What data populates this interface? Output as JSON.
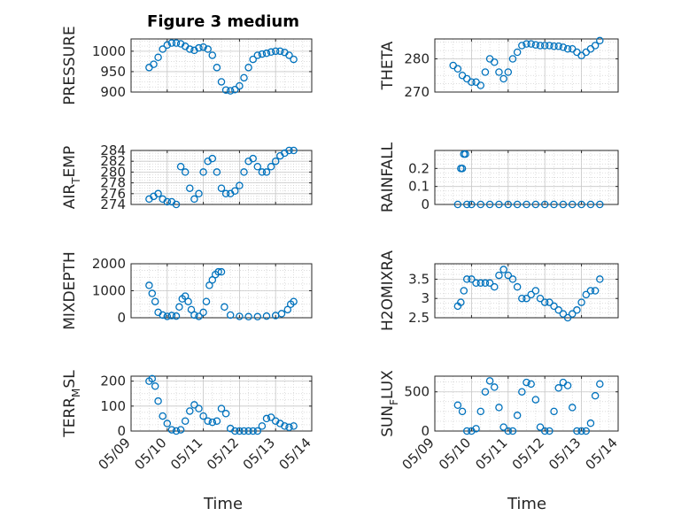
{
  "figure": {
    "title": "Figure 3 medium",
    "marker_color": "#0072BD",
    "grid": "on (major + minor dotted)"
  },
  "chart_data": [
    {
      "type": "scatter",
      "title": "Figure 3 medium",
      "ylabel": "PRESSURE",
      "xlim": [
        "05/09",
        "05/14"
      ],
      "ylim": [
        900,
        1030
      ],
      "yticks": [
        900,
        950,
        1000
      ],
      "x": [
        "05/09 12:00",
        "05/09 15:00",
        "05/09 18:00",
        "05/09 21:00",
        "05/10 00:00",
        "05/10 03:00",
        "05/10 06:00",
        "05/10 09:00",
        "05/10 12:00",
        "05/10 15:00",
        "05/10 18:00",
        "05/10 21:00",
        "05/11 00:00",
        "05/11 03:00",
        "05/11 06:00",
        "05/11 09:00",
        "05/11 12:00",
        "05/11 15:00",
        "05/11 18:00",
        "05/11 21:00",
        "05/12 00:00",
        "05/12 03:00",
        "05/12 06:00",
        "05/12 09:00",
        "05/12 12:00",
        "05/12 15:00",
        "05/12 18:00",
        "05/12 21:00",
        "05/13 00:00",
        "05/13 03:00",
        "05/13 06:00",
        "05/13 09:00",
        "05/13 12:00"
      ],
      "y": [
        960,
        968,
        985,
        1005,
        1015,
        1020,
        1020,
        1018,
        1012,
        1005,
        1002,
        1008,
        1010,
        1005,
        990,
        960,
        925,
        905,
        903,
        906,
        915,
        935,
        960,
        980,
        990,
        993,
        995,
        998,
        1000,
        1000,
        997,
        990,
        980
      ]
    },
    {
      "type": "scatter",
      "ylabel": "THETA",
      "xlim": [
        "05/09",
        "05/14"
      ],
      "ylim": [
        270,
        286
      ],
      "yticks": [
        270,
        280
      ],
      "x": [
        "05/09 12:00",
        "05/09 15:00",
        "05/09 18:00",
        "05/09 21:00",
        "05/10 00:00",
        "05/10 03:00",
        "05/10 06:00",
        "05/10 09:00",
        "05/10 12:00",
        "05/10 15:00",
        "05/10 18:00",
        "05/10 21:00",
        "05/11 00:00",
        "05/11 03:00",
        "05/11 06:00",
        "05/11 09:00",
        "05/11 12:00",
        "05/11 15:00",
        "05/11 18:00",
        "05/11 21:00",
        "05/12 00:00",
        "05/12 03:00",
        "05/12 06:00",
        "05/12 09:00",
        "05/12 12:00",
        "05/12 15:00",
        "05/12 18:00",
        "05/12 21:00",
        "05/13 00:00",
        "05/13 03:00",
        "05/13 06:00",
        "05/13 09:00",
        "05/13 12:00"
      ],
      "y": [
        278,
        277,
        275,
        274,
        273,
        273,
        272,
        276,
        280,
        279,
        276,
        274,
        276,
        280,
        282,
        284,
        284.5,
        284.5,
        284.2,
        284,
        284,
        284,
        283.8,
        283.8,
        283.5,
        283,
        283,
        282,
        281,
        282,
        283,
        284,
        285.5
      ]
    },
    {
      "type": "scatter",
      "ylabel": "AIR_TEMP",
      "xlim": [
        "05/09",
        "05/14"
      ],
      "ylim": [
        274,
        284
      ],
      "yticks": [
        274,
        276,
        278,
        280,
        282,
        284
      ],
      "x": [
        "05/09 12:00",
        "05/09 15:00",
        "05/09 18:00",
        "05/09 21:00",
        "05/10 00:00",
        "05/10 03:00",
        "05/10 06:00",
        "05/10 09:00",
        "05/10 12:00",
        "05/10 15:00",
        "05/10 18:00",
        "05/10 21:00",
        "05/11 00:00",
        "05/11 03:00",
        "05/11 06:00",
        "05/11 09:00",
        "05/11 12:00",
        "05/11 15:00",
        "05/11 18:00",
        "05/11 21:00",
        "05/12 00:00",
        "05/12 03:00",
        "05/12 06:00",
        "05/12 09:00",
        "05/12 12:00",
        "05/12 15:00",
        "05/12 18:00",
        "05/12 21:00",
        "05/13 00:00",
        "05/13 03:00",
        "05/13 06:00",
        "05/13 09:00",
        "05/13 12:00"
      ],
      "y": [
        275,
        275.5,
        276,
        275,
        274.5,
        274.5,
        274,
        281,
        280,
        277,
        275,
        276,
        280,
        282,
        282.5,
        280,
        277,
        276,
        276,
        276.5,
        277.5,
        280,
        282,
        282.5,
        281,
        280,
        280,
        281,
        282,
        283,
        283.5,
        284,
        284
      ]
    },
    {
      "type": "scatter",
      "ylabel": "RAINFALL",
      "xlim": [
        "05/09",
        "05/14"
      ],
      "ylim": [
        0,
        0.3
      ],
      "yticks": [
        0,
        0.1,
        0.2
      ],
      "x": [
        "05/09 15:00",
        "05/09 17:00",
        "05/09 18:00",
        "05/09 19:00",
        "05/09 20:00",
        "05/09 21:00",
        "05/10 00:00",
        "05/10 06:00",
        "05/10 12:00",
        "05/10 18:00",
        "05/11 00:00",
        "05/11 06:00",
        "05/11 12:00",
        "05/11 18:00",
        "05/12 00:00",
        "05/12 06:00",
        "05/12 12:00",
        "05/12 18:00",
        "05/13 00:00",
        "05/13 06:00",
        "05/13 12:00"
      ],
      "y": [
        0,
        0.2,
        0.2,
        0.28,
        0.28,
        0,
        0,
        0,
        0,
        0,
        0,
        0,
        0,
        0,
        0,
        0,
        0,
        0,
        0,
        0,
        0
      ]
    },
    {
      "type": "scatter",
      "ylabel": "MIXDEPTH",
      "xlim": [
        "05/09",
        "05/14"
      ],
      "ylim": [
        0,
        2000
      ],
      "yticks": [
        0,
        1000,
        2000
      ],
      "x": [
        "05/09 12:00",
        "05/09 14:00",
        "05/09 16:00",
        "05/09 18:00",
        "05/09 21:00",
        "05/10 00:00",
        "05/10 03:00",
        "05/10 06:00",
        "05/10 08:00",
        "05/10 10:00",
        "05/10 12:00",
        "05/10 14:00",
        "05/10 16:00",
        "05/10 18:00",
        "05/10 21:00",
        "05/11 00:00",
        "05/11 02:00",
        "05/11 04:00",
        "05/11 06:00",
        "05/11 08:00",
        "05/11 10:00",
        "05/11 12:00",
        "05/11 14:00",
        "05/11 18:00",
        "05/12 00:00",
        "05/12 06:00",
        "05/12 12:00",
        "05/12 18:00",
        "05/13 00:00",
        "05/13 04:00",
        "05/13 08:00",
        "05/13 10:00",
        "05/13 12:00"
      ],
      "y": [
        1200,
        900,
        600,
        200,
        100,
        50,
        80,
        60,
        400,
        700,
        800,
        600,
        300,
        100,
        50,
        200,
        600,
        1200,
        1400,
        1600,
        1700,
        1700,
        400,
        100,
        50,
        40,
        40,
        60,
        80,
        150,
        300,
        500,
        600
      ]
    },
    {
      "type": "scatter",
      "ylabel": "H2OMIXRA",
      "xlim": [
        "05/09",
        "05/14"
      ],
      "ylim": [
        2.5,
        3.9
      ],
      "yticks": [
        2.5,
        3,
        3.5
      ],
      "x": [
        "05/09 15:00",
        "05/09 17:00",
        "05/09 19:00",
        "05/09 21:00",
        "05/10 00:00",
        "05/10 03:00",
        "05/10 06:00",
        "05/10 09:00",
        "05/10 12:00",
        "05/10 15:00",
        "05/10 18:00",
        "05/10 21:00",
        "05/11 00:00",
        "05/11 03:00",
        "05/11 06:00",
        "05/11 09:00",
        "05/11 12:00",
        "05/11 15:00",
        "05/11 18:00",
        "05/11 21:00",
        "05/12 00:00",
        "05/12 03:00",
        "05/12 06:00",
        "05/12 09:00",
        "05/12 12:00",
        "05/12 15:00",
        "05/12 18:00",
        "05/12 21:00",
        "05/13 00:00",
        "05/13 03:00",
        "05/13 06:00",
        "05/13 09:00",
        "05/13 12:00"
      ],
      "y": [
        2.8,
        2.9,
        3.2,
        3.5,
        3.5,
        3.4,
        3.4,
        3.4,
        3.4,
        3.3,
        3.6,
        3.75,
        3.6,
        3.5,
        3.3,
        3.0,
        3.0,
        3.1,
        3.2,
        3.0,
        2.9,
        2.9,
        2.8,
        2.7,
        2.6,
        2.5,
        2.6,
        2.7,
        2.9,
        3.1,
        3.2,
        3.2,
        3.5
      ]
    },
    {
      "type": "scatter",
      "ylabel": "TERR_MSL",
      "xlim": [
        "05/09",
        "05/14"
      ],
      "ylim": [
        0,
        220
      ],
      "yticks": [
        0,
        100,
        200
      ],
      "x": [
        "05/09 12:00",
        "05/09 14:00",
        "05/09 16:00",
        "05/09 18:00",
        "05/09 21:00",
        "05/10 00:00",
        "05/10 03:00",
        "05/10 06:00",
        "05/10 09:00",
        "05/10 12:00",
        "05/10 15:00",
        "05/10 18:00",
        "05/10 21:00",
        "05/11 00:00",
        "05/11 03:00",
        "05/11 06:00",
        "05/11 09:00",
        "05/11 12:00",
        "05/11 15:00",
        "05/11 18:00",
        "05/11 21:00",
        "05/12 00:00",
        "05/12 03:00",
        "05/12 06:00",
        "05/12 09:00",
        "05/12 12:00",
        "05/12 15:00",
        "05/12 18:00",
        "05/12 21:00",
        "05/13 00:00",
        "05/13 03:00",
        "05/13 06:00",
        "05/13 09:00",
        "05/13 12:00"
      ],
      "y": [
        200,
        210,
        180,
        120,
        60,
        30,
        5,
        0,
        5,
        40,
        80,
        105,
        90,
        60,
        40,
        35,
        40,
        90,
        70,
        10,
        0,
        0,
        0,
        0,
        0,
        0,
        20,
        50,
        55,
        40,
        30,
        20,
        15,
        20
      ]
    },
    {
      "type": "scatter",
      "ylabel": "SUN_FLUX",
      "xlim": [
        "05/09",
        "05/14"
      ],
      "ylim": [
        0,
        700
      ],
      "yticks": [
        0,
        500
      ],
      "x": [
        "05/09 15:00",
        "05/09 18:00",
        "05/09 21:00",
        "05/10 00:00",
        "05/10 03:00",
        "05/10 06:00",
        "05/10 09:00",
        "05/10 12:00",
        "05/10 15:00",
        "05/10 18:00",
        "05/10 21:00",
        "05/11 00:00",
        "05/11 03:00",
        "05/11 06:00",
        "05/11 09:00",
        "05/11 12:00",
        "05/11 15:00",
        "05/11 18:00",
        "05/11 21:00",
        "05/12 00:00",
        "05/12 03:00",
        "05/12 06:00",
        "05/12 09:00",
        "05/12 12:00",
        "05/12 15:00",
        "05/12 18:00",
        "05/12 21:00",
        "05/13 00:00",
        "05/13 03:00",
        "05/13 06:00",
        "05/13 09:00",
        "05/13 12:00"
      ],
      "y": [
        330,
        250,
        0,
        0,
        30,
        250,
        500,
        640,
        560,
        300,
        50,
        0,
        0,
        200,
        500,
        620,
        600,
        400,
        50,
        0,
        0,
        250,
        550,
        620,
        580,
        300,
        0,
        0,
        0,
        100,
        450,
        600
      ]
    }
  ],
  "shared_x": {
    "label": "Time",
    "ticks": [
      "05/09",
      "05/10",
      "05/11",
      "05/12",
      "05/13",
      "05/14"
    ]
  },
  "ylabels": {
    "air_temp": {
      "base": "AIR",
      "sub": "T",
      "rest": "EMP"
    },
    "terr_msl": {
      "base": "TERR",
      "sub": "M",
      "rest": "SL"
    },
    "sun_flux": {
      "base": "SUN",
      "sub": "F",
      "rest": "LUX"
    }
  }
}
